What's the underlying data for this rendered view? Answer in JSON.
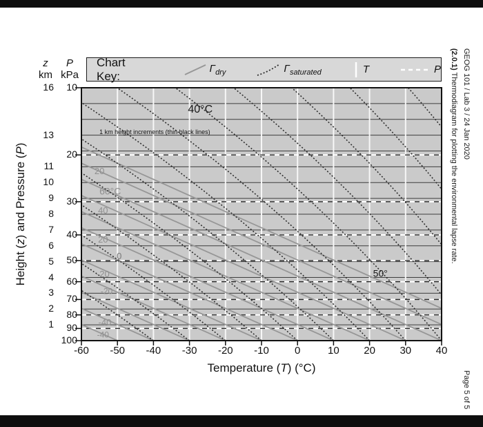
{
  "right_rail": {
    "course": "GEOG 101 / Lab 3 / 24 Jan 2020",
    "caption_bold": "(2.0.1)",
    "caption_rest": " Thermodiagram for plotting the environmental lapse rate.",
    "page_number": "Page 5 of 5"
  },
  "chart_key": {
    "title": "Chart Key:",
    "items": [
      {
        "symbol": "dry-adiabat-gray-line",
        "label_main": "Γ",
        "label_sub": "dry"
      },
      {
        "symbol": "saturated-adiabat-dotted-line",
        "label_main": "Γ",
        "label_sub": "saturated"
      },
      {
        "symbol": "temperature-white-vertical-line",
        "label_main": "T",
        "label_sub": ""
      },
      {
        "symbol": "pressure-white-dashed-line",
        "label_main": "P",
        "label_sub": ""
      }
    ]
  },
  "axes": {
    "y_left": {
      "z_header_letter": "z",
      "z_header_unit": "km",
      "p_header_letter": "P",
      "p_header_unit": "kPa",
      "title_parts": [
        "Height (",
        "z",
        ") and Pressure (",
        "P",
        ")"
      ],
      "z_ticks": [
        16,
        13,
        11,
        10,
        9,
        8,
        7,
        6,
        5,
        4,
        3,
        2,
        1
      ],
      "p_ticks": [
        10,
        20,
        30,
        40,
        50,
        60,
        70,
        80,
        90,
        100
      ]
    },
    "x": {
      "title_parts": [
        "Temperature (",
        "T",
        ") (°C)"
      ],
      "ticks": [
        -60,
        -50,
        -40,
        -30,
        -20,
        -10,
        0,
        10,
        20,
        30,
        40
      ]
    }
  },
  "colors": {
    "plot_bg": "#cacaca",
    "key_bg": "#d8d8d8",
    "dry_line": "#979797",
    "saturated_line": "#2e2e2e",
    "white_line": "#f7f7f7",
    "km_line": "#3d3d3d",
    "border": "#111111",
    "black_bar": "#0e0e0e"
  },
  "chart_data": {
    "type": "line",
    "title": "Thermodiagram for plotting the environmental lapse rate",
    "xlabel": "Temperature (T) (°C)",
    "ylabel": "Height (z) and Pressure (P)",
    "x_range_C": [
      -60,
      40
    ],
    "x_tick_step_C": 10,
    "z_range_km": [
      0,
      16
    ],
    "height_line_step_km": 1,
    "pressure_ticks_kPa": [
      10,
      20,
      30,
      40,
      50,
      60,
      70,
      80,
      90,
      100
    ],
    "pressure_dashed_lines_kPa": [
      20,
      30,
      40,
      50,
      60,
      70,
      80,
      90
    ],
    "temperature_white_lines_C": [
      -50,
      -40,
      -30,
      -20,
      -10,
      0,
      10,
      20,
      30
    ],
    "pressure_height_model": {
      "scale_height_km": 7.3
    },
    "dry_adiabats": {
      "style": "solid gray",
      "lapse_rate_C_per_km": 9.8,
      "surface_temps_C": [
        -50,
        -40,
        -30,
        -20,
        -10,
        0,
        10,
        20,
        30,
        40,
        50,
        60
      ]
    },
    "saturated_adiabats": {
      "style": "dotted dark",
      "surface_temps_C": [
        -40,
        -30,
        -20,
        -10,
        0,
        10,
        20,
        30,
        40,
        50,
        60,
        70,
        80
      ],
      "model": {
        "T_inf": 160,
        "k_per_km": 0.03
      }
    },
    "annotations": [
      {
        "text": "40°C",
        "t": -27,
        "z": 14.6,
        "color": "#1a1a1a",
        "size": 16
      },
      {
        "text": "1 km height increments (thin black lines)",
        "t": -55,
        "z": 13.15,
        "color": "#111111",
        "size": 9,
        "align": "left"
      },
      {
        "text": "20",
        "t": -55,
        "z": 10.7,
        "color": "#8f8f8f",
        "size": 13
      },
      {
        "text": "60°C",
        "t": -52,
        "z": 9.45,
        "color": "#8f8f8f",
        "size": 14
      },
      {
        "text": "40",
        "t": -54,
        "z": 8.2,
        "color": "#8f8f8f",
        "size": 13
      },
      {
        "text": "20",
        "t": -54,
        "z": 6.4,
        "color": "#8f8f8f",
        "size": 13
      },
      {
        "text": "0",
        "t": -49.5,
        "z": 5.35,
        "color": "#777777",
        "size": 13
      },
      {
        "text": "-20",
        "t": -54,
        "z": 4.2,
        "color": "#8f8f8f",
        "size": 13
      },
      {
        "text": "-20",
        "t": -53,
        "z": 3.1,
        "color": "#8f8f8f",
        "size": 12
      },
      {
        "text": "-40",
        "t": -53.5,
        "z": 1.15,
        "color": "#8f8f8f",
        "size": 13
      },
      {
        "text": "-40",
        "t": -54,
        "z": 0.35,
        "color": "#8f8f8f",
        "size": 12
      },
      {
        "text": "50°",
        "t": 23,
        "z": 4.25,
        "color": "#1a1a1a",
        "size": 14
      }
    ]
  }
}
